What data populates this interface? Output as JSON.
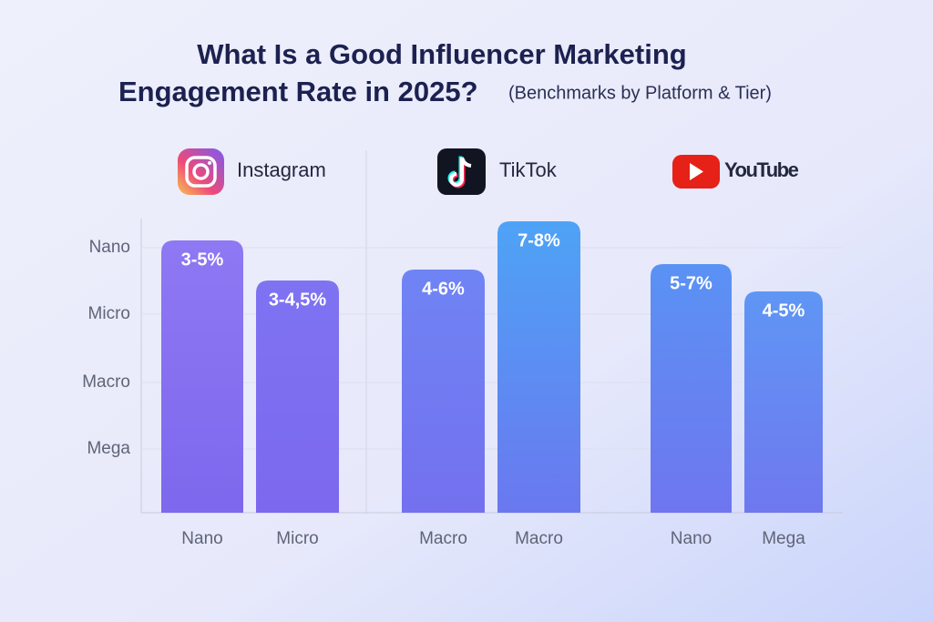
{
  "title": [
    "What Is a Good Influencer Marketing",
    "Engagement Rate in 2025?"
  ],
  "subtitle": "(Benchmarks by Platform & Tier)",
  "tier_labels": [
    "Nano",
    "Micro",
    "Macro",
    "Mega"
  ],
  "platforms": [
    {
      "name": "Instagram",
      "bars": [
        {
          "category": "Nano",
          "label": "3-5%"
        },
        {
          "category": "Micro",
          "label": "3-4,5%"
        }
      ]
    },
    {
      "name": "TikTok",
      "bars": [
        {
          "category": "Macro",
          "label": "4-6%"
        },
        {
          "category": "Macro",
          "label": "7-8%"
        }
      ]
    },
    {
      "name": "YouTube",
      "bars": [
        {
          "category": "Nano",
          "label": "5-7%"
        },
        {
          "category": "Mega",
          "label": "4-5%"
        }
      ]
    }
  ]
}
